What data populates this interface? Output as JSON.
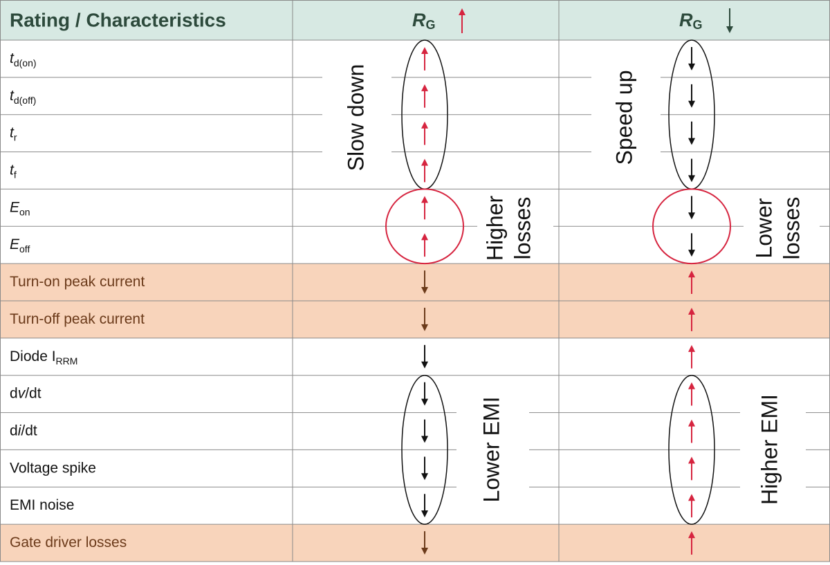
{
  "header": {
    "col1": "Rating / Characteristics",
    "col2": {
      "main": "R",
      "sub": "G"
    },
    "col3": {
      "main": "R",
      "sub": "G"
    },
    "col2_arrow": {
      "dir": "up",
      "color": "#d6243f"
    },
    "col3_arrow": {
      "dir": "down",
      "color": "#2d4a3c"
    }
  },
  "rows": [
    {
      "label": [
        {
          "text": "t",
          "style": "italic"
        },
        {
          "text": "d(on)",
          "style": "sub"
        }
      ],
      "shaded": false,
      "rg_up": {
        "dir": "up",
        "color": "#d6243f"
      },
      "rg_down": {
        "dir": "down",
        "color": "#111111"
      }
    },
    {
      "label": [
        {
          "text": "t",
          "style": "italic"
        },
        {
          "text": "d(off)",
          "style": "sub"
        }
      ],
      "shaded": false,
      "rg_up": {
        "dir": "up",
        "color": "#d6243f"
      },
      "rg_down": {
        "dir": "down",
        "color": "#111111"
      }
    },
    {
      "label": [
        {
          "text": "t",
          "style": "italic"
        },
        {
          "text": "r",
          "style": "sub"
        }
      ],
      "shaded": false,
      "rg_up": {
        "dir": "up",
        "color": "#d6243f"
      },
      "rg_down": {
        "dir": "down",
        "color": "#111111"
      }
    },
    {
      "label": [
        {
          "text": "t",
          "style": "italic"
        },
        {
          "text": "f",
          "style": "sub"
        }
      ],
      "shaded": false,
      "rg_up": {
        "dir": "up",
        "color": "#d6243f"
      },
      "rg_down": {
        "dir": "down",
        "color": "#111111"
      }
    },
    {
      "label": [
        {
          "text": "E",
          "style": "italic"
        },
        {
          "text": "on",
          "style": "sub"
        }
      ],
      "shaded": false,
      "rg_up": {
        "dir": "up",
        "color": "#d6243f"
      },
      "rg_down": {
        "dir": "down",
        "color": "#111111"
      }
    },
    {
      "label": [
        {
          "text": "E",
          "style": "italic"
        },
        {
          "text": "off",
          "style": "sub"
        }
      ],
      "shaded": false,
      "rg_up": {
        "dir": "up",
        "color": "#d6243f"
      },
      "rg_down": {
        "dir": "down",
        "color": "#111111"
      }
    },
    {
      "label": [
        {
          "text": "Turn-on peak current",
          "style": "normal"
        }
      ],
      "shaded": true,
      "rg_up": {
        "dir": "down",
        "color": "#6b3a1a"
      },
      "rg_down": {
        "dir": "up",
        "color": "#d6243f"
      }
    },
    {
      "label": [
        {
          "text": "Turn-off peak current",
          "style": "normal"
        }
      ],
      "shaded": true,
      "rg_up": {
        "dir": "down",
        "color": "#6b3a1a"
      },
      "rg_down": {
        "dir": "up",
        "color": "#d6243f"
      }
    },
    {
      "label": [
        {
          "text": "Diode I",
          "style": "normal"
        },
        {
          "text": "RRM",
          "style": "sub"
        }
      ],
      "shaded": false,
      "rg_up": {
        "dir": "down",
        "color": "#111111"
      },
      "rg_down": {
        "dir": "up",
        "color": "#d6243f"
      }
    },
    {
      "label": [
        {
          "text": "d",
          "style": "normal"
        },
        {
          "text": "v",
          "style": "italic"
        },
        {
          "text": "/dt",
          "style": "normal"
        }
      ],
      "shaded": false,
      "rg_up": {
        "dir": "down",
        "color": "#111111"
      },
      "rg_down": {
        "dir": "up",
        "color": "#d6243f"
      }
    },
    {
      "label": [
        {
          "text": "d",
          "style": "normal"
        },
        {
          "text": "i",
          "style": "italic"
        },
        {
          "text": "/dt",
          "style": "normal"
        }
      ],
      "shaded": false,
      "rg_up": {
        "dir": "down",
        "color": "#111111"
      },
      "rg_down": {
        "dir": "up",
        "color": "#d6243f"
      }
    },
    {
      "label": [
        {
          "text": "Voltage spike",
          "style": "normal"
        }
      ],
      "shaded": false,
      "rg_up": {
        "dir": "down",
        "color": "#111111"
      },
      "rg_down": {
        "dir": "up",
        "color": "#d6243f"
      }
    },
    {
      "label": [
        {
          "text": "EMI noise",
          "style": "normal"
        }
      ],
      "shaded": false,
      "rg_up": {
        "dir": "down",
        "color": "#111111"
      },
      "rg_down": {
        "dir": "up",
        "color": "#d6243f"
      }
    },
    {
      "label": [
        {
          "text": "Gate driver losses",
          "style": "normal"
        }
      ],
      "shaded": true,
      "rg_up": {
        "dir": "down",
        "color": "#6b3a1a"
      },
      "rg_down": {
        "dir": "up",
        "color": "#d6243f"
      }
    }
  ],
  "annotations": {
    "slow_down": [
      "Slow down"
    ],
    "higher_losses": [
      "Higher",
      "losses"
    ],
    "lower_emi": [
      "Lower EMI"
    ],
    "speed_up": [
      "Speed up"
    ],
    "lower_losses": [
      "Lower",
      "losses"
    ],
    "higher_emi": [
      "Higher EMI"
    ]
  }
}
